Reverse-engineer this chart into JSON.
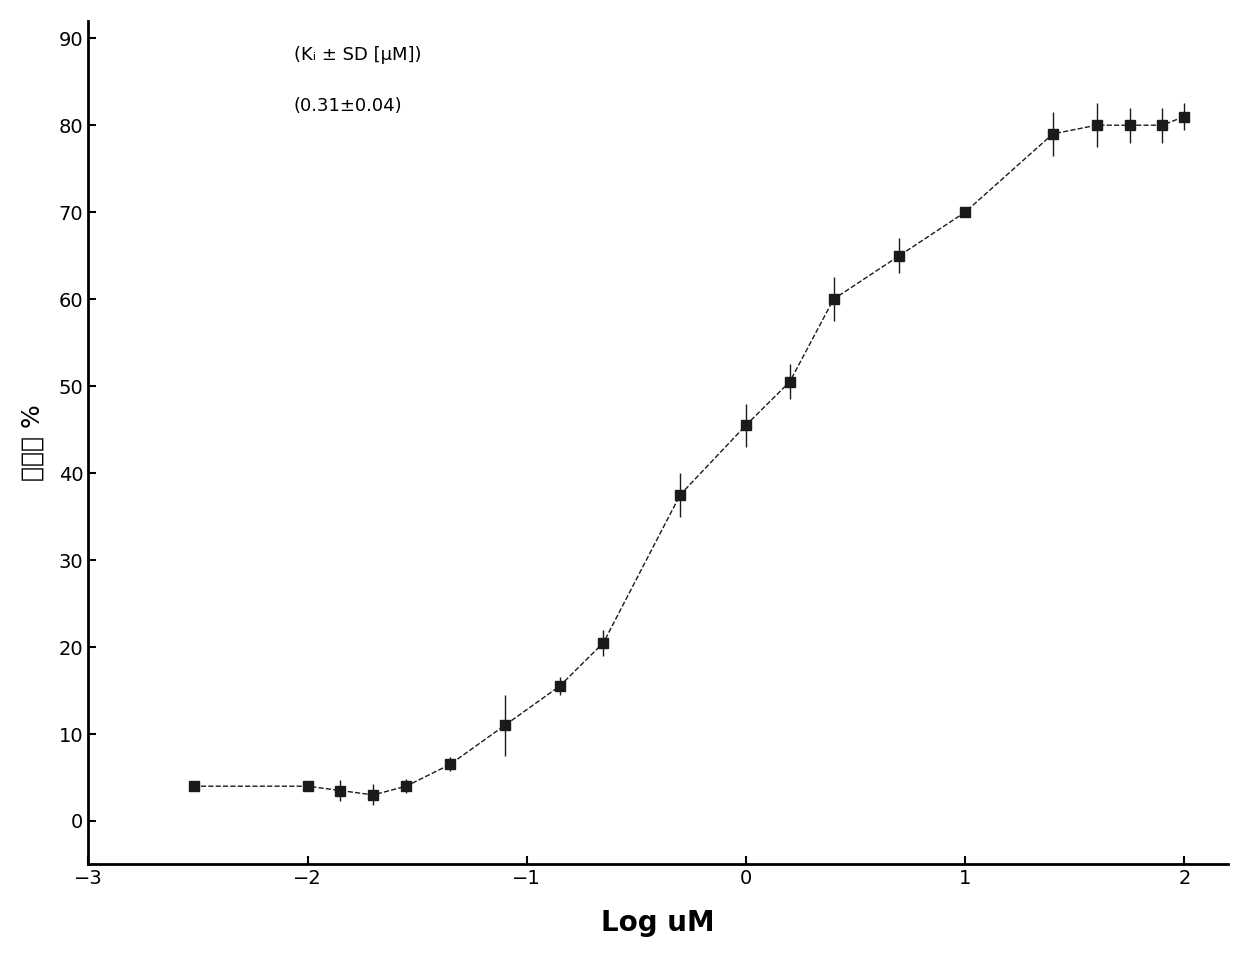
{
  "x_values": [
    -2.52,
    -2.0,
    -1.85,
    -1.7,
    -1.55,
    -1.35,
    -1.1,
    -0.85,
    -0.65,
    -0.3,
    0.0,
    0.2,
    0.4,
    0.7,
    1.0,
    1.4,
    1.6,
    1.75,
    1.9,
    2.0
  ],
  "y_values": [
    4.0,
    4.0,
    3.5,
    3.0,
    4.0,
    6.5,
    11.0,
    15.5,
    20.5,
    37.5,
    45.5,
    50.5,
    60.0,
    65.0,
    70.0,
    79.0,
    80.0,
    80.0,
    80.0,
    81.0
  ],
  "y_errors": [
    0.3,
    0.3,
    1.2,
    1.2,
    0.8,
    0.8,
    3.5,
    1.0,
    1.5,
    2.5,
    2.5,
    2.0,
    2.5,
    2.0,
    0.5,
    2.5,
    2.5,
    2.0,
    2.0,
    1.5
  ],
  "xlabel": "Log uM",
  "ylabel": "抑制率 %",
  "annotation_line1": "(Kᵢ ± SD [μM])",
  "annotation_line2": "(0.31±0.04)",
  "xlim": [
    -3,
    2.2
  ],
  "ylim": [
    -5,
    92
  ],
  "xticks": [
    -3,
    -2,
    -1,
    0,
    1,
    2
  ],
  "yticks": [
    0,
    10,
    20,
    30,
    40,
    50,
    60,
    70,
    80,
    90
  ],
  "marker_color": "#1a1a1a",
  "bg_color": "#ffffff",
  "marker_size": 7,
  "line_style": "--"
}
